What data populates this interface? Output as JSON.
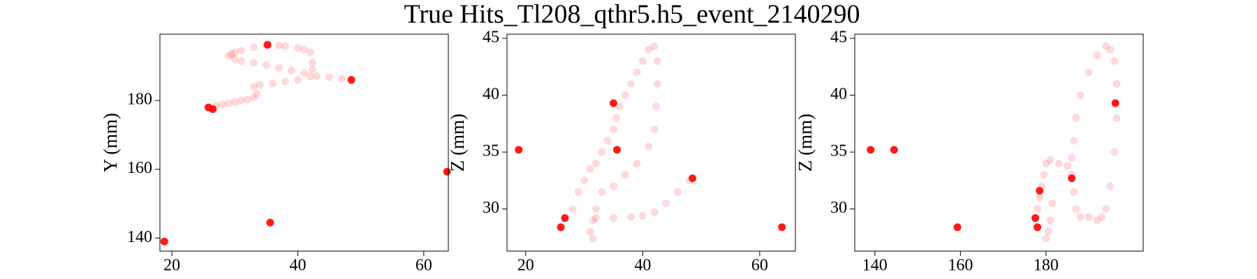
{
  "title": "True Hits_Tl208_qthr5.h5_event_2140290",
  "chart_data": [
    {
      "type": "scatter",
      "ylabel": "Y (mm)",
      "xlim": [
        18.1,
        63.9
      ],
      "ylim": [
        136.2,
        199.3
      ],
      "xticks": [
        20,
        40,
        60
      ],
      "yticks": [
        140,
        160,
        180
      ],
      "series": [
        {
          "color": "#ff0000",
          "alpha": 0.15,
          "x": [
            27,
            28,
            29,
            30,
            31,
            32,
            33,
            33.5,
            33,
            34,
            36,
            38,
            40,
            42,
            42.3,
            42.3,
            42,
            41,
            40,
            38,
            37,
            35,
            33,
            31,
            30,
            29.5,
            29,
            30,
            31,
            33,
            35,
            37,
            39,
            41,
            43,
            45,
            47
          ],
          "values": [
            178.5,
            178.8,
            179.2,
            179.6,
            180,
            180.3,
            180.8,
            182,
            184,
            184.6,
            185,
            185.5,
            186,
            187,
            189,
            191,
            194,
            194.8,
            195.3,
            195.8,
            196,
            196.2,
            195.5,
            194.5,
            194,
            193.5,
            193,
            192,
            191.5,
            191,
            190.3,
            189.5,
            188.8,
            188,
            187.2,
            186.8,
            186.4
          ]
        },
        {
          "color": "#ff0000",
          "alpha": 0.9,
          "x": [
            18.8,
            35.2,
            48.5,
            35.6,
            63.7,
            25.8,
            26.5
          ],
          "values": [
            139,
            196.2,
            186,
            144.5,
            159.3,
            178,
            177.5
          ]
        }
      ]
    },
    {
      "type": "scatter",
      "ylabel": "Z (mm)",
      "xlim": [
        16.8,
        66.1
      ],
      "ylim": [
        26.3,
        45.36
      ],
      "xticks": [
        20,
        40,
        60
      ],
      "yticks": [
        30,
        35,
        40,
        45
      ],
      "series": [
        {
          "color": "#ff0000",
          "alpha": 0.15,
          "x": [
            28,
            29,
            30,
            31,
            32,
            33,
            34,
            35,
            35.5,
            36,
            37,
            38,
            39,
            40,
            41,
            42,
            42.5,
            42.5,
            42.3,
            42,
            41,
            39,
            37,
            35,
            33,
            32,
            31.5,
            31,
            31.5,
            32,
            35,
            38,
            40,
            42,
            44,
            46,
            48
          ],
          "values": [
            30,
            31.5,
            32.5,
            33.5,
            34,
            35,
            36,
            37,
            38,
            39,
            40,
            41,
            42,
            43,
            44,
            44.3,
            43,
            41,
            39,
            37,
            35.5,
            34,
            33,
            32,
            31.5,
            30,
            29,
            28,
            27.4,
            29.2,
            29.2,
            29.3,
            29.4,
            29.7,
            30.5,
            31.5,
            32.5
          ]
        },
        {
          "color": "#ff0000",
          "alpha": 0.9,
          "x": [
            18.8,
            35,
            35.6,
            48.5,
            63.8,
            26,
            26.7
          ],
          "values": [
            35.2,
            39.3,
            35.2,
            32.7,
            28.4,
            28.4,
            29.2
          ]
        }
      ]
    },
    {
      "type": "scatter",
      "ylabel": "Z (mm)",
      "xlim": [
        135.3,
        202.7
      ],
      "ylim": [
        26.3,
        45.36
      ],
      "xticks": [
        140,
        160,
        180
      ],
      "yticks": [
        30,
        35,
        40,
        45
      ],
      "series": [
        {
          "color": "#ff0000",
          "alpha": 0.15,
          "x": [
            178,
            178.5,
            179,
            179.5,
            180,
            181,
            183,
            185,
            186,
            186.5,
            187,
            188,
            190,
            192,
            193,
            194,
            195,
            196,
            196.5,
            196.5,
            196,
            195,
            194,
            192,
            190,
            188,
            187,
            186.5,
            186,
            180,
            180.5,
            181,
            181.5
          ],
          "values": [
            30,
            31,
            32,
            33,
            34,
            34.3,
            34,
            33.8,
            33,
            31.5,
            30,
            29.3,
            29.3,
            29,
            29.3,
            30,
            32,
            35,
            38,
            41,
            43,
            44,
            44.3,
            43.5,
            42,
            40,
            38,
            36,
            34.5,
            27.4,
            28,
            29,
            30.5
          ]
        },
        {
          "color": "#ff0000",
          "alpha": 0.9,
          "x": [
            139,
            144.5,
            159.3,
            178,
            177.5,
            186,
            196.2,
            178.5
          ],
          "values": [
            35.2,
            35.2,
            28.4,
            28.4,
            29.2,
            32.7,
            39.3,
            31.6
          ]
        }
      ]
    }
  ]
}
